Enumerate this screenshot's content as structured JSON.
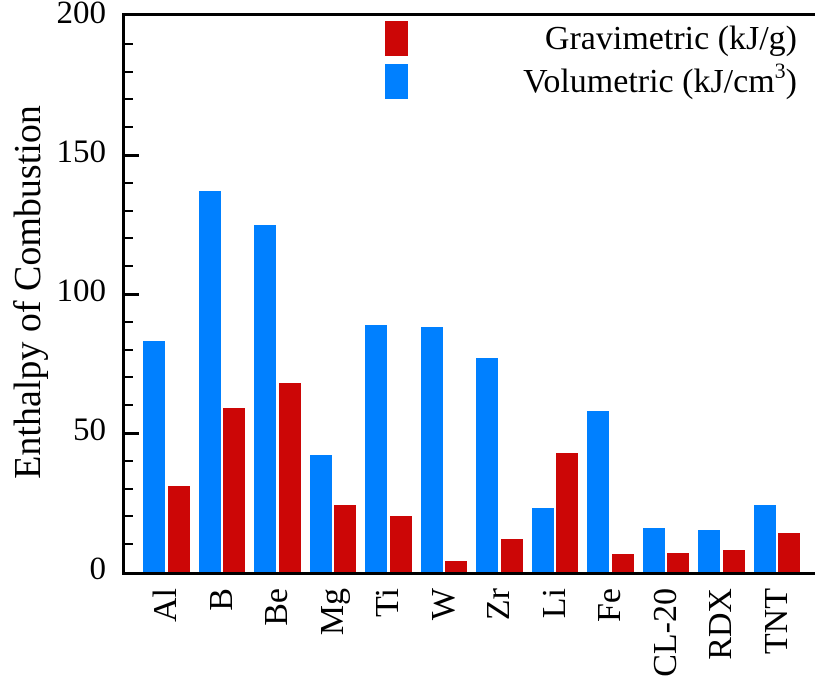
{
  "y_axis": {
    "label": "Enthalpy of Combustion",
    "ticks": [
      0,
      50,
      100,
      150,
      200
    ],
    "minor_tick_step": 10,
    "max": 200
  },
  "legend": [
    {
      "series": "gravimetric",
      "color": "#CC0606",
      "label": "Gravimetric (kJ/g)"
    },
    {
      "series": "volumetric",
      "color": "#0080FF",
      "label_prefix": "Volumetric (kJ/cm",
      "label_sup": "3",
      "label_suffix": ")"
    }
  ],
  "chart_data": {
    "type": "bar",
    "title": "",
    "xlabel": "",
    "ylabel": "Enthalpy of Combustion",
    "ylim": [
      0,
      200
    ],
    "yticks": [
      0,
      50,
      100,
      150,
      200
    ],
    "minor_tick_step": 10,
    "grid": false,
    "legend_position": "top-right",
    "categories": [
      "Al",
      "B",
      "Be",
      "Mg",
      "Ti",
      "W",
      "Zr",
      "Li",
      "Fe",
      "CL-20",
      "RDX",
      "TNT"
    ],
    "series": [
      {
        "key": "volumetric",
        "name": "Volumetric (kJ/cm³)",
        "color": "#0080FF",
        "values": [
          83,
          137,
          125,
          42,
          89,
          88,
          77,
          23,
          58,
          16,
          15,
          24
        ]
      },
      {
        "key": "gravimetric",
        "name": "Gravimetric (kJ/g)",
        "color": "#CC0606",
        "values": [
          31,
          59,
          68,
          24,
          20,
          4,
          12,
          43,
          6.5,
          7,
          8,
          14
        ]
      }
    ]
  }
}
